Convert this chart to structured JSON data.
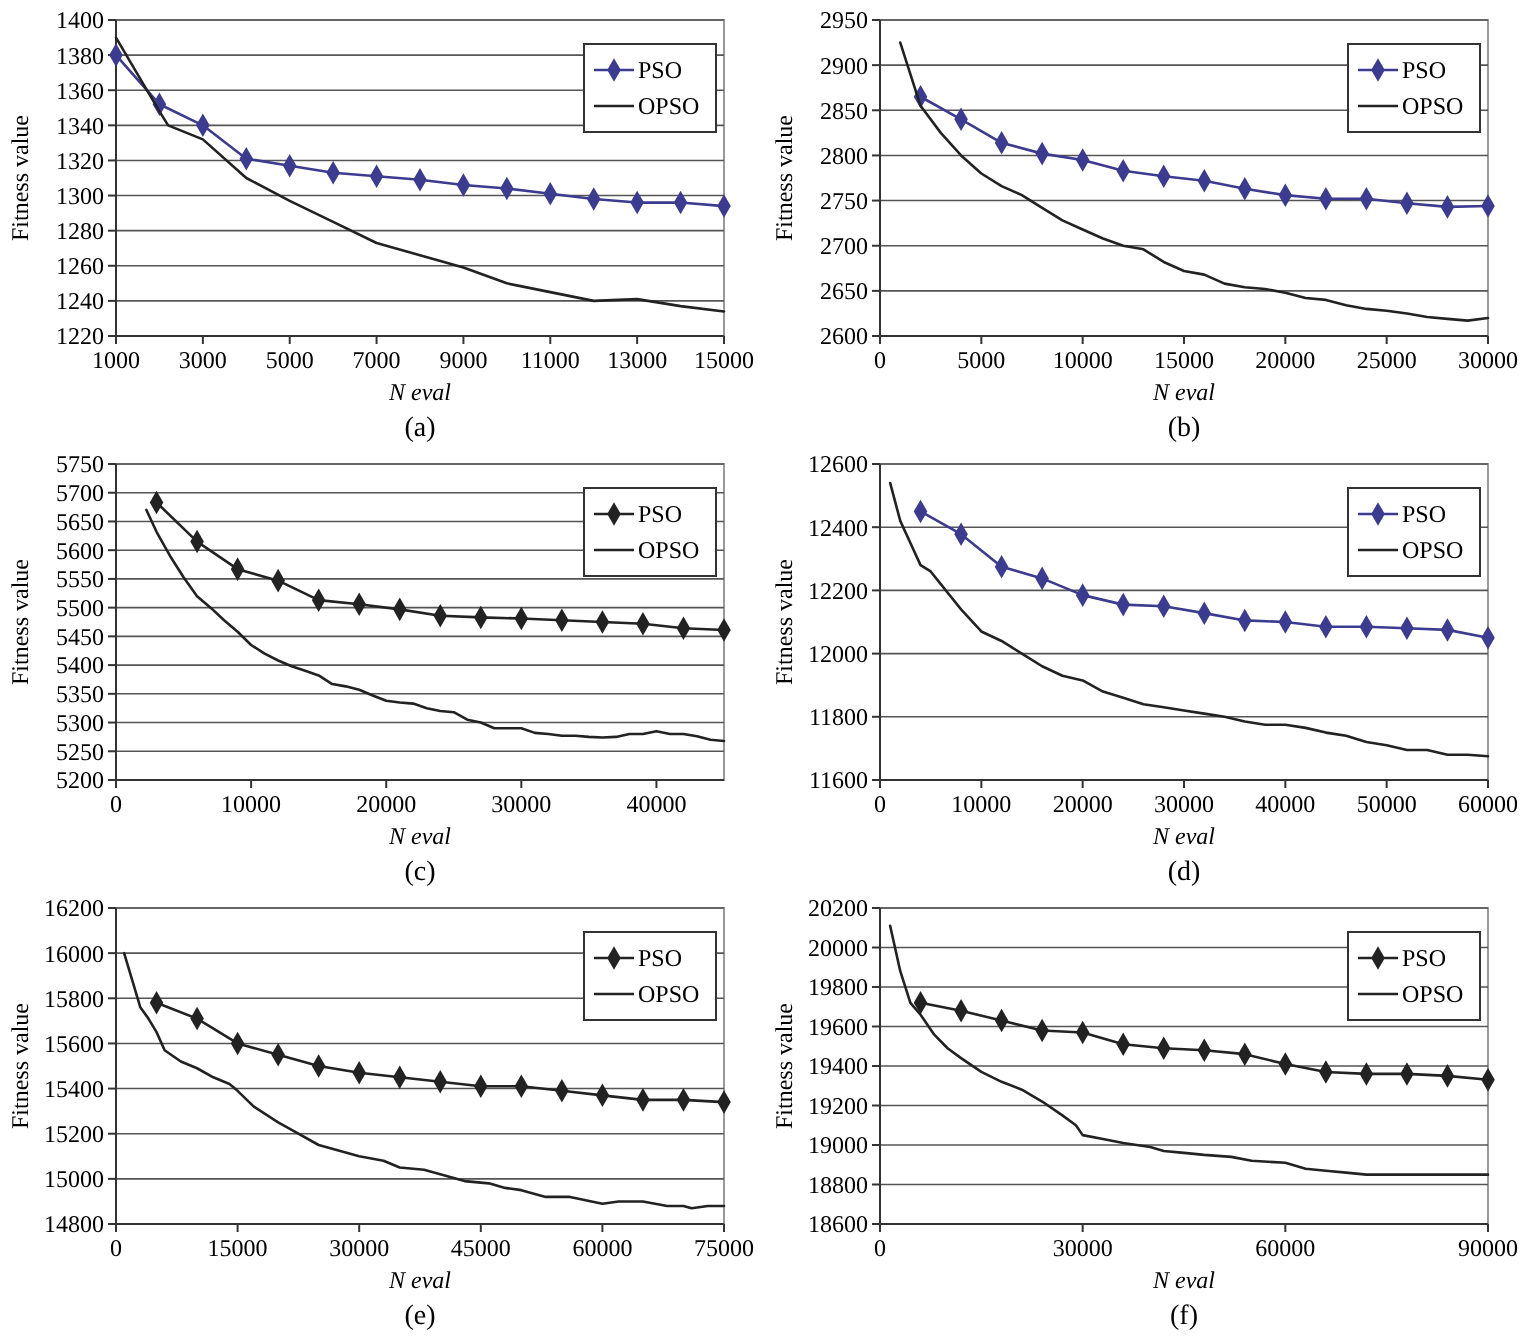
{
  "chart_data": [
    {
      "type": "line",
      "title": "(a)",
      "xlabel": "N eval",
      "ylabel": "Fitness value",
      "xlim": [
        1000,
        15000
      ],
      "xticks": [
        1000,
        3000,
        5000,
        7000,
        9000,
        11000,
        13000,
        15000
      ],
      "ylim": [
        1220,
        1400
      ],
      "yticks": [
        1220,
        1240,
        1260,
        1280,
        1300,
        1320,
        1340,
        1360,
        1380,
        1400
      ],
      "grid": "y",
      "legend": "top right",
      "series": [
        {
          "name": "PSO",
          "color": "#3b3b8f",
          "marker": "diamond",
          "x": [
            1000,
            2000,
            3000,
            4000,
            5000,
            6000,
            7000,
            8000,
            9000,
            10000,
            11000,
            12000,
            13000,
            14000,
            15000
          ],
          "values": [
            1380,
            1352,
            1340,
            1321,
            1317,
            1313,
            1311,
            1309,
            1306,
            1304,
            1301,
            1298,
            1296,
            1296,
            1294
          ]
        },
        {
          "name": "OPSO",
          "color": "#222222",
          "marker": "none",
          "x": [
            1000,
            2000,
            2200,
            3000,
            4000,
            5000,
            6000,
            7000,
            8000,
            9000,
            10000,
            11000,
            12000,
            13000,
            14000,
            15000
          ],
          "values": [
            1390,
            1348,
            1340,
            1332,
            1310,
            1297,
            1285,
            1273,
            1266,
            1259,
            1250,
            1245,
            1240,
            1241,
            1237,
            1234
          ]
        }
      ]
    },
    {
      "type": "line",
      "title": "(b)",
      "xlabel": "N eval",
      "ylabel": "Fitness value",
      "xlim": [
        0,
        30000
      ],
      "xticks": [
        0,
        5000,
        10000,
        15000,
        20000,
        25000,
        30000
      ],
      "ylim": [
        2600,
        2950
      ],
      "yticks": [
        2600,
        2650,
        2700,
        2750,
        2800,
        2850,
        2900,
        2950
      ],
      "grid": "y",
      "legend": "top right",
      "series": [
        {
          "name": "PSO",
          "color": "#3b3b8f",
          "marker": "diamond",
          "x": [
            2000,
            4000,
            6000,
            8000,
            10000,
            12000,
            14000,
            16000,
            18000,
            20000,
            22000,
            24000,
            26000,
            28000,
            30000
          ],
          "values": [
            2865,
            2840,
            2814,
            2802,
            2795,
            2783,
            2777,
            2772,
            2763,
            2756,
            2752,
            2752,
            2747,
            2743,
            2744
          ]
        },
        {
          "name": "OPSO",
          "color": "#222222",
          "marker": "none",
          "x": [
            1000,
            2000,
            3000,
            4000,
            5000,
            6000,
            7000,
            8000,
            9000,
            10000,
            11000,
            12000,
            13000,
            14000,
            15000,
            16000,
            17000,
            18000,
            19000,
            20000,
            21000,
            22000,
            23000,
            24000,
            25000,
            26000,
            27000,
            28000,
            29000,
            30000
          ],
          "values": [
            2925,
            2855,
            2825,
            2800,
            2780,
            2766,
            2756,
            2742,
            2728,
            2718,
            2708,
            2700,
            2696,
            2682,
            2672,
            2668,
            2658,
            2654,
            2652,
            2648,
            2642,
            2640,
            2634,
            2630,
            2628,
            2625,
            2621,
            2619,
            2617,
            2620
          ]
        }
      ]
    },
    {
      "type": "line",
      "title": "(c)",
      "xlabel": "N eval",
      "ylabel": "Fitness value",
      "xlim": [
        0,
        45000
      ],
      "xticks": [
        0,
        10000,
        20000,
        30000,
        40000
      ],
      "ylim": [
        5200,
        5750
      ],
      "yticks": [
        5200,
        5250,
        5300,
        5350,
        5400,
        5450,
        5500,
        5550,
        5600,
        5650,
        5700,
        5750
      ],
      "grid": "y",
      "legend": "top right",
      "series": [
        {
          "name": "PSO",
          "color": "#222222",
          "marker": "diamond",
          "x": [
            3000,
            6000,
            9000,
            12000,
            15000,
            18000,
            21000,
            24000,
            27000,
            30000,
            33000,
            36000,
            39000,
            42000,
            45000
          ],
          "values": [
            5683,
            5615,
            5567,
            5547,
            5513,
            5506,
            5497,
            5486,
            5483,
            5481,
            5478,
            5475,
            5472,
            5464,
            5461
          ]
        },
        {
          "name": "OPSO",
          "color": "#222222",
          "marker": "none",
          "x": [
            2250,
            3000,
            4000,
            5000,
            6000,
            7000,
            8000,
            9000,
            10000,
            11000,
            12000,
            13000,
            14000,
            15000,
            16000,
            17000,
            18000,
            19000,
            20000,
            21000,
            22000,
            23000,
            24000,
            25000,
            26000,
            27000,
            28000,
            29000,
            30000,
            31000,
            32000,
            33000,
            34000,
            35000,
            36000,
            37000,
            38000,
            39000,
            40000,
            41000,
            42000,
            43000,
            44000,
            45000
          ],
          "values": [
            5670,
            5632,
            5590,
            5553,
            5520,
            5500,
            5478,
            5458,
            5435,
            5420,
            5408,
            5398,
            5390,
            5382,
            5367,
            5363,
            5357,
            5347,
            5338,
            5335,
            5333,
            5325,
            5320,
            5318,
            5305,
            5300,
            5290,
            5290,
            5290,
            5282,
            5280,
            5277,
            5277,
            5275,
            5274,
            5275,
            5280,
            5280,
            5285,
            5280,
            5280,
            5276,
            5270,
            5268
          ]
        }
      ]
    },
    {
      "type": "line",
      "title": "(d)",
      "xlabel": "N eval",
      "ylabel": "Fitness value",
      "xlim": [
        0,
        60000
      ],
      "xticks": [
        0,
        10000,
        20000,
        30000,
        40000,
        50000,
        60000
      ],
      "ylim": [
        11600,
        12600
      ],
      "yticks": [
        11600,
        11800,
        12000,
        12200,
        12400,
        12600
      ],
      "grid": "y",
      "legend": "top right",
      "series": [
        {
          "name": "PSO",
          "color": "#3b3b8f",
          "marker": "diamond",
          "x": [
            4000,
            8000,
            12000,
            16000,
            20000,
            24000,
            28000,
            32000,
            36000,
            40000,
            44000,
            48000,
            52000,
            56000,
            60000
          ],
          "values": [
            12450,
            12378,
            12275,
            12238,
            12185,
            12155,
            12150,
            12128,
            12105,
            12100,
            12085,
            12085,
            12080,
            12075,
            12050
          ]
        },
        {
          "name": "OPSO",
          "color": "#222222",
          "marker": "none",
          "x": [
            1000,
            2000,
            3000,
            4000,
            5000,
            6000,
            7000,
            8000,
            9000,
            10000,
            12000,
            14000,
            16000,
            18000,
            20000,
            22000,
            24000,
            26000,
            28000,
            30000,
            32000,
            34000,
            36000,
            38000,
            40000,
            42000,
            44000,
            46000,
            48000,
            50000,
            52000,
            54000,
            56000,
            58000,
            60000
          ],
          "values": [
            12540,
            12420,
            12350,
            12280,
            12260,
            12220,
            12180,
            12140,
            12105,
            12070,
            12040,
            12000,
            11960,
            11930,
            11915,
            11880,
            11860,
            11840,
            11830,
            11820,
            11810,
            11800,
            11785,
            11775,
            11775,
            11765,
            11750,
            11740,
            11720,
            11710,
            11695,
            11695,
            11680,
            11680,
            11675
          ]
        }
      ]
    },
    {
      "type": "line",
      "title": "(e)",
      "xlabel": "N eval",
      "ylabel": "Fitness value",
      "xlim": [
        0,
        75000
      ],
      "xticks": [
        0,
        15000,
        30000,
        45000,
        60000,
        75000
      ],
      "ylim": [
        14800,
        16200
      ],
      "yticks": [
        14800,
        15000,
        15200,
        15400,
        15600,
        15800,
        16000,
        16200
      ],
      "grid": "y",
      "legend": "top right",
      "series": [
        {
          "name": "PSO",
          "color": "#222222",
          "marker": "diamond",
          "x": [
            5000,
            10000,
            15000,
            20000,
            25000,
            30000,
            35000,
            40000,
            45000,
            50000,
            55000,
            60000,
            65000,
            70000,
            75000
          ],
          "values": [
            15780,
            15710,
            15600,
            15550,
            15500,
            15470,
            15450,
            15430,
            15410,
            15410,
            15390,
            15370,
            15350,
            15350,
            15340
          ]
        },
        {
          "name": "OPSO",
          "color": "#222222",
          "marker": "none",
          "x": [
            1000,
            2000,
            3000,
            4000,
            5000,
            6000,
            8000,
            10000,
            12000,
            14000,
            15000,
            17000,
            20000,
            22000,
            25000,
            28000,
            30000,
            33000,
            35000,
            38000,
            40000,
            43000,
            46000,
            48000,
            50000,
            53000,
            56000,
            60000,
            62000,
            65000,
            68000,
            70000,
            71000,
            73000,
            75000
          ],
          "values": [
            16000,
            15880,
            15760,
            15710,
            15650,
            15570,
            15520,
            15490,
            15450,
            15420,
            15390,
            15320,
            15250,
            15210,
            15150,
            15120,
            15100,
            15080,
            15050,
            15040,
            15020,
            14990,
            14980,
            14960,
            14950,
            14920,
            14920,
            14890,
            14900,
            14900,
            14880,
            14880,
            14870,
            14880,
            14880
          ]
        }
      ]
    },
    {
      "type": "line",
      "title": "(f)",
      "xlabel": "N eval",
      "ylabel": "Fitness value",
      "xlim": [
        0,
        90000
      ],
      "xticks": [
        0,
        30000,
        60000,
        90000
      ],
      "ylim": [
        18600,
        20200
      ],
      "yticks": [
        18600,
        18800,
        19000,
        19200,
        19400,
        19600,
        19800,
        20000,
        20200
      ],
      "grid": "y",
      "legend": "top right",
      "series": [
        {
          "name": "PSO",
          "color": "#222222",
          "marker": "diamond",
          "x": [
            6000,
            12000,
            18000,
            24000,
            30000,
            36000,
            42000,
            48000,
            54000,
            60000,
            66000,
            72000,
            78000,
            84000,
            90000
          ],
          "values": [
            19720,
            19680,
            19630,
            19580,
            19570,
            19510,
            19490,
            19480,
            19460,
            19410,
            19370,
            19360,
            19360,
            19350,
            19330
          ]
        },
        {
          "name": "OPSO",
          "color": "#222222",
          "marker": "none",
          "x": [
            1500,
            3000,
            4500,
            6000,
            8000,
            10000,
            12000,
            15000,
            18000,
            21000,
            24000,
            27000,
            29000,
            30000,
            33000,
            36000,
            40000,
            42000,
            45000,
            48000,
            52000,
            55000,
            60000,
            63000,
            66000,
            69000,
            72000,
            90000
          ],
          "values": [
            20110,
            19880,
            19720,
            19660,
            19560,
            19490,
            19440,
            19370,
            19320,
            19280,
            19220,
            19150,
            19100,
            19050,
            19030,
            19010,
            18990,
            18970,
            18960,
            18950,
            18940,
            18920,
            18910,
            18880,
            18870,
            18860,
            18850,
            18850
          ]
        }
      ]
    }
  ]
}
